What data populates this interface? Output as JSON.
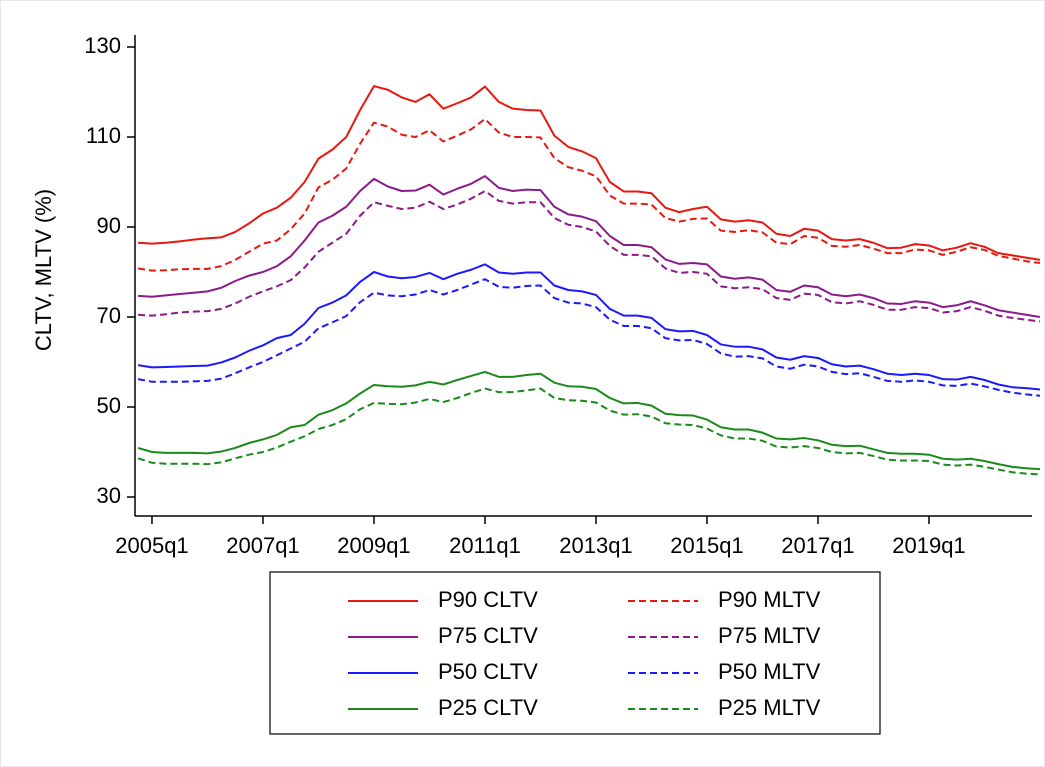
{
  "chart_data": {
    "type": "line",
    "y_label": "CLTV, MLTV (%)",
    "x": [
      "2004q4",
      "2005q1",
      "2005q2",
      "2005q3",
      "2005q4",
      "2006q1",
      "2006q2",
      "2006q3",
      "2006q4",
      "2007q1",
      "2007q2",
      "2007q3",
      "2007q4",
      "2008q1",
      "2008q2",
      "2008q3",
      "2008q4",
      "2009q1",
      "2009q2",
      "2009q3",
      "2009q4",
      "2010q1",
      "2010q2",
      "2010q3",
      "2010q4",
      "2011q1",
      "2011q2",
      "2011q3",
      "2011q4",
      "2012q1",
      "2012q2",
      "2012q3",
      "2012q4",
      "2013q1",
      "2013q2",
      "2013q3",
      "2013q4",
      "2014q1",
      "2014q2",
      "2014q3",
      "2014q4",
      "2015q1",
      "2015q2",
      "2015q3",
      "2015q4",
      "2016q1",
      "2016q2",
      "2016q3",
      "2016q4",
      "2017q1",
      "2017q2",
      "2017q3",
      "2017q4",
      "2018q1",
      "2018q2",
      "2018q3",
      "2018q4",
      "2019q1",
      "2019q2",
      "2019q3",
      "2019q4",
      "2020q1",
      "2020q2",
      "2020q3",
      "2020q4",
      "2021q1"
    ],
    "xticks": [
      "2005q1",
      "2007q1",
      "2009q1",
      "2011q1",
      "2013q1",
      "2015q1",
      "2017q1",
      "2019q1"
    ],
    "ylim": [
      30,
      130
    ],
    "yticks": [
      30,
      50,
      70,
      90,
      110,
      130
    ],
    "legend": "bottom",
    "series": [
      {
        "name": "P90 CLTV",
        "color": "#e8170f",
        "linestyle": "solid",
        "values": [
          86.5,
          86.3,
          86.5,
          86.8,
          87.2,
          87.5,
          87.7,
          88.9,
          90.8,
          93.0,
          94.3,
          96.5,
          100.0,
          105.2,
          107.2,
          110.0,
          116.0,
          121.3,
          120.5,
          118.8,
          117.8,
          119.5,
          116.3,
          117.5,
          118.8,
          121.2,
          117.8,
          116.3,
          116.0,
          115.9,
          110.3,
          107.8,
          106.8,
          105.3,
          100.0,
          97.9,
          97.9,
          97.5,
          94.3,
          93.3,
          94.0,
          94.5,
          91.7,
          91.2,
          91.5,
          91.0,
          88.5,
          88.0,
          89.6,
          89.2,
          87.3,
          87.0,
          87.3,
          86.5,
          85.3,
          85.4,
          86.2,
          85.9,
          84.8,
          85.4,
          86.4,
          85.6,
          84.2,
          83.7,
          83.2,
          82.7
        ]
      },
      {
        "name": "P90 MLTV",
        "color": "#e8170f",
        "linestyle": "dashed",
        "values": [
          80.8,
          80.3,
          80.4,
          80.6,
          80.7,
          80.7,
          81.3,
          82.7,
          84.5,
          86.3,
          87.0,
          89.5,
          93.0,
          98.8,
          100.5,
          103.0,
          108.5,
          113.2,
          112.3,
          110.5,
          110.0,
          111.5,
          109.0,
          110.3,
          111.7,
          114.0,
          111.0,
          110.0,
          110.0,
          109.9,
          105.3,
          103.3,
          102.5,
          101.3,
          97.0,
          95.2,
          95.2,
          95.0,
          92.0,
          91.2,
          91.8,
          91.9,
          89.2,
          88.9,
          89.3,
          88.8,
          86.5,
          86.2,
          88.0,
          87.6,
          85.8,
          85.6,
          86.0,
          85.2,
          84.2,
          84.2,
          85.0,
          84.8,
          83.8,
          84.5,
          85.5,
          84.9,
          83.6,
          83.0,
          82.4,
          82.0
        ]
      },
      {
        "name": "P75 CLTV",
        "color": "#8b1a8b",
        "linestyle": "solid",
        "values": [
          74.7,
          74.5,
          74.8,
          75.1,
          75.4,
          75.7,
          76.5,
          78.0,
          79.2,
          80.0,
          81.3,
          83.5,
          87.0,
          91.0,
          92.5,
          94.5,
          98.0,
          100.7,
          99.0,
          98.0,
          98.1,
          99.4,
          97.2,
          98.5,
          99.6,
          101.3,
          98.7,
          98.0,
          98.3,
          98.2,
          94.5,
          92.8,
          92.3,
          91.3,
          88.0,
          86.0,
          86.0,
          85.5,
          82.8,
          81.8,
          82.0,
          81.7,
          79.0,
          78.5,
          78.8,
          78.3,
          76.0,
          75.6,
          77.0,
          76.6,
          75.0,
          74.6,
          75.0,
          74.2,
          73.0,
          72.9,
          73.5,
          73.2,
          72.2,
          72.6,
          73.5,
          72.6,
          71.5,
          71.0,
          70.5,
          70.0
        ]
      },
      {
        "name": "P75 MLTV",
        "color": "#8b1a8b",
        "linestyle": "dashed",
        "values": [
          70.5,
          70.3,
          70.6,
          71.0,
          71.2,
          71.3,
          71.8,
          73.0,
          74.5,
          75.7,
          76.8,
          78.2,
          81.0,
          84.5,
          86.5,
          88.5,
          92.5,
          95.5,
          94.7,
          94.0,
          94.3,
          95.6,
          94.0,
          95.0,
          96.3,
          98.0,
          95.8,
          95.2,
          95.5,
          95.5,
          92.0,
          90.5,
          90.0,
          89.0,
          85.8,
          83.8,
          83.8,
          83.5,
          80.8,
          79.8,
          80.0,
          79.6,
          76.8,
          76.4,
          76.6,
          76.2,
          74.2,
          73.8,
          75.2,
          74.9,
          73.3,
          73.0,
          73.5,
          72.7,
          71.6,
          71.6,
          72.2,
          72.0,
          71.0,
          71.3,
          72.2,
          71.4,
          70.3,
          69.8,
          69.4,
          69.0
        ]
      },
      {
        "name": "P50 CLTV",
        "color": "#1a1aff",
        "linestyle": "solid",
        "values": [
          59.3,
          58.8,
          58.9,
          59.0,
          59.1,
          59.2,
          59.9,
          61.0,
          62.5,
          63.7,
          65.3,
          66.0,
          68.5,
          72.0,
          73.2,
          74.8,
          77.8,
          80.0,
          79.0,
          78.6,
          78.9,
          79.8,
          78.4,
          79.6,
          80.5,
          81.7,
          79.9,
          79.6,
          79.9,
          79.9,
          77.0,
          76.0,
          75.7,
          74.9,
          71.8,
          70.3,
          70.3,
          69.8,
          67.3,
          66.8,
          66.9,
          66.0,
          63.9,
          63.4,
          63.4,
          62.8,
          61.0,
          60.5,
          61.3,
          60.9,
          59.5,
          59.0,
          59.2,
          58.4,
          57.4,
          57.1,
          57.4,
          57.1,
          56.2,
          56.1,
          56.7,
          56.0,
          55.0,
          54.4,
          54.2,
          53.9
        ]
      },
      {
        "name": "P50 MLTV",
        "color": "#1a1aff",
        "linestyle": "dashed",
        "values": [
          56.2,
          55.6,
          55.6,
          55.6,
          55.7,
          55.8,
          56.3,
          57.5,
          58.8,
          60.0,
          61.5,
          63.0,
          64.5,
          67.5,
          68.8,
          70.2,
          73.3,
          75.4,
          74.8,
          74.6,
          75.0,
          76.0,
          75.0,
          76.0,
          77.2,
          78.4,
          76.7,
          76.5,
          76.9,
          77.0,
          74.2,
          73.2,
          73.0,
          72.2,
          69.4,
          68.0,
          68.0,
          67.5,
          65.3,
          64.8,
          64.9,
          64.0,
          61.9,
          61.2,
          61.3,
          60.8,
          59.0,
          58.5,
          59.4,
          59.0,
          57.8,
          57.3,
          57.5,
          56.7,
          55.8,
          55.6,
          55.9,
          55.6,
          54.8,
          54.7,
          55.2,
          54.6,
          53.8,
          53.2,
          52.8,
          52.5
        ]
      },
      {
        "name": "P25 CLTV",
        "color": "#1a8a1a",
        "linestyle": "solid",
        "values": [
          40.9,
          40.0,
          39.8,
          39.8,
          39.8,
          39.7,
          40.1,
          40.9,
          42.0,
          42.8,
          43.8,
          45.5,
          46.0,
          48.3,
          49.3,
          50.8,
          53.0,
          54.9,
          54.6,
          54.5,
          54.8,
          55.6,
          55.0,
          56.0,
          56.9,
          57.8,
          56.7,
          56.7,
          57.1,
          57.4,
          55.4,
          54.6,
          54.5,
          54.0,
          52.0,
          50.8,
          50.9,
          50.3,
          48.5,
          48.2,
          48.1,
          47.2,
          45.5,
          45.0,
          45.0,
          44.3,
          43.0,
          42.8,
          43.1,
          42.6,
          41.6,
          41.3,
          41.4,
          40.6,
          39.8,
          39.6,
          39.6,
          39.4,
          38.5,
          38.3,
          38.5,
          38.0,
          37.3,
          36.7,
          36.4,
          36.2
        ]
      },
      {
        "name": "P25 MLTV",
        "color": "#1a8a1a",
        "linestyle": "dashed",
        "values": [
          38.6,
          37.6,
          37.4,
          37.4,
          37.4,
          37.3,
          37.7,
          38.6,
          39.4,
          40.0,
          41.0,
          42.3,
          43.5,
          45.1,
          46.0,
          47.3,
          49.5,
          50.9,
          50.7,
          50.6,
          51.0,
          51.8,
          51.1,
          52.0,
          53.1,
          54.1,
          53.3,
          53.3,
          53.7,
          54.1,
          52.0,
          51.5,
          51.4,
          51.0,
          49.2,
          48.3,
          48.4,
          47.9,
          46.4,
          46.1,
          46.0,
          45.2,
          43.7,
          43.0,
          43.0,
          42.5,
          41.2,
          41.0,
          41.3,
          40.9,
          40.0,
          39.7,
          39.8,
          39.1,
          38.3,
          38.1,
          38.1,
          38.0,
          37.2,
          37.0,
          37.2,
          36.7,
          36.1,
          35.5,
          35.2,
          35.0
        ]
      }
    ]
  }
}
